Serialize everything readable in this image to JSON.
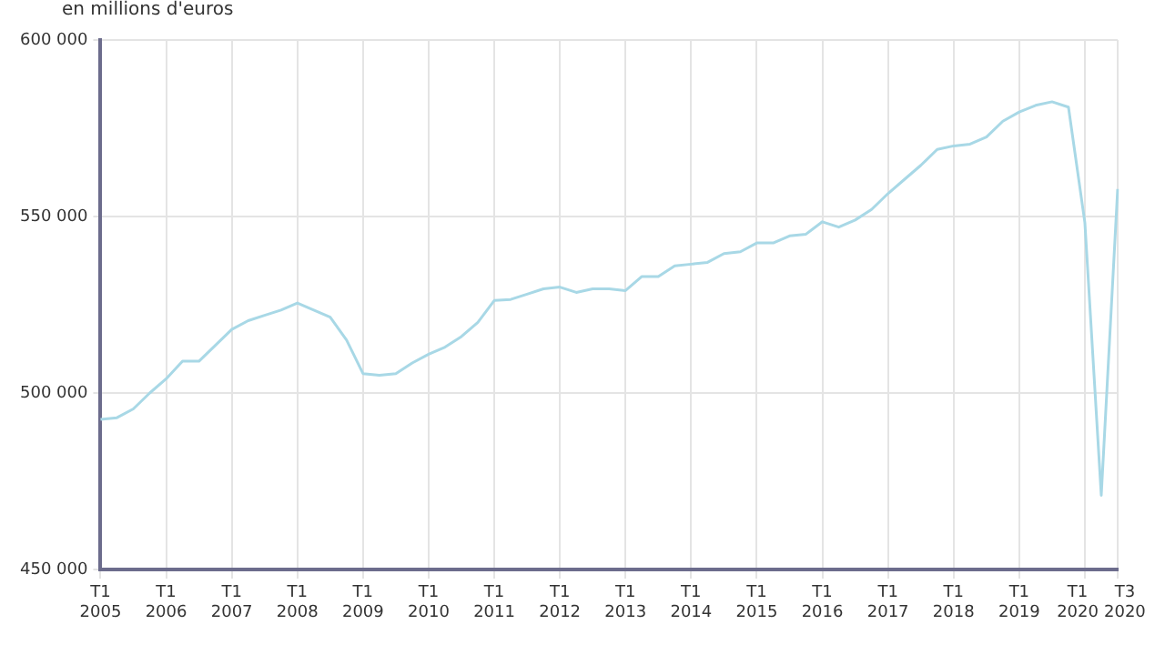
{
  "chart_data": {
    "type": "line",
    "ylabel": "en millions d'euros",
    "categories": [
      "T1 2005",
      null,
      null,
      null,
      "T1 2006",
      null,
      null,
      null,
      "T1 2007",
      null,
      null,
      null,
      "T1 2008",
      null,
      null,
      null,
      "T1 2009",
      null,
      null,
      null,
      "T1 2010",
      null,
      null,
      null,
      "T1 2011",
      null,
      null,
      null,
      "T1 2012",
      null,
      null,
      null,
      "T1 2013",
      null,
      null,
      null,
      "T1 2014",
      null,
      null,
      null,
      "T1 2015",
      null,
      null,
      null,
      "T1 2016",
      null,
      null,
      null,
      "T1 2017",
      null,
      null,
      null,
      "T1 2018",
      null,
      null,
      null,
      "T1 2019",
      null,
      null,
      null,
      "T1 2020",
      null,
      "T3 2020"
    ],
    "series": [
      {
        "color": "#a8d8e6",
        "values": [
          492500,
          493000,
          495500,
          500000,
          504000,
          509000,
          509000,
          513500,
          518000,
          520500,
          522000,
          523500,
          525500,
          523500,
          521500,
          515000,
          505500,
          505000,
          505500,
          508500,
          511000,
          513000,
          516000,
          520000,
          526200,
          526500,
          528000,
          529500,
          530000,
          528500,
          529500,
          529500,
          529000,
          533000,
          533000,
          536000,
          536500,
          537000,
          539500,
          540000,
          542500,
          542500,
          544500,
          545000,
          548500,
          547000,
          549000,
          552000,
          556500,
          560500,
          564500,
          569000,
          570000,
          570500,
          572500,
          577000,
          579600,
          581500,
          582500,
          581000,
          548300,
          471000,
          557800
        ]
      }
    ],
    "ylim": [
      450000,
      600000
    ],
    "yticks": [
      {
        "value": 450000,
        "label": "450 000"
      },
      {
        "value": 500000,
        "label": "500 000"
      },
      {
        "value": 550000,
        "label": "550 000"
      },
      {
        "value": 600000,
        "label": "600 000"
      }
    ],
    "grid": true,
    "marker": "none",
    "line_style": "solid",
    "legend": false
  }
}
